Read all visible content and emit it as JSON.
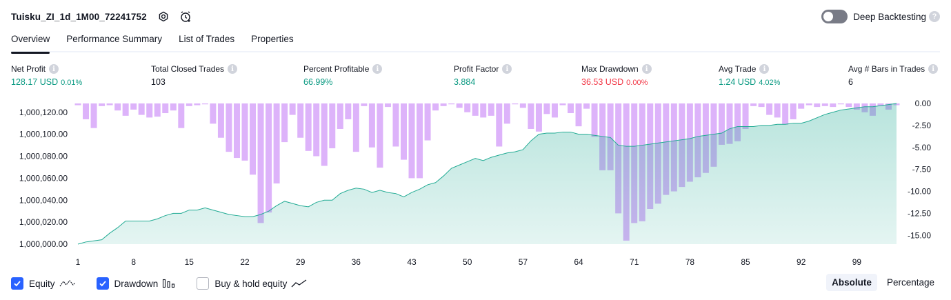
{
  "header": {
    "strategy_name": "Tuisku_ZI_1d_1M00_72241752",
    "icons": [
      "settings-icon",
      "add-alert-icon"
    ],
    "deep_backtesting_label": "Deep Backtesting",
    "deep_backtesting_enabled": false
  },
  "tabs": [
    {
      "label": "Overview",
      "active": true
    },
    {
      "label": "Performance Summary",
      "active": false
    },
    {
      "label": "List of Trades",
      "active": false
    },
    {
      "label": "Properties",
      "active": false
    }
  ],
  "metrics": [
    {
      "label": "Net Profit",
      "value": "128.17 USD",
      "sub": "0.01%",
      "color": "#089981"
    },
    {
      "label": "Total Closed Trades",
      "value": "103",
      "sub": "",
      "color": "#131722"
    },
    {
      "label": "Percent Profitable",
      "value": "66.99%",
      "sub": "",
      "color": "#089981"
    },
    {
      "label": "Profit Factor",
      "value": "3.884",
      "sub": "",
      "color": "#089981"
    },
    {
      "label": "Max Drawdown",
      "value": "36.53 USD",
      "sub": "0.00%",
      "color": "#f23645"
    },
    {
      "label": "Avg Trade",
      "value": "1.24 USD",
      "sub": "4.02%",
      "color": "#089981"
    },
    {
      "label": "Avg # Bars in Trades",
      "value": "6",
      "sub": "",
      "color": "#131722"
    }
  ],
  "legend": {
    "equity": {
      "label": "Equity",
      "checked": true
    },
    "drawdown": {
      "label": "Drawdown",
      "checked": true
    },
    "buy_hold": {
      "label": "Buy & hold equity",
      "checked": false
    }
  },
  "mode": {
    "absolute": "Absolute",
    "percentage": "Percentage",
    "selected": "Absolute"
  },
  "chart_data": {
    "type": "area",
    "x_ticks": [
      "1",
      "8",
      "15",
      "22",
      "29",
      "36",
      "43",
      "50",
      "57",
      "64",
      "71",
      "78",
      "85",
      "92",
      "99"
    ],
    "y_left_ticks": [
      "1,000,000.00",
      "1,000,020.00",
      "1,000,040.00",
      "1,000,060.00",
      "1,000,080.00",
      "1,000,100.00",
      "1,000,120.00"
    ],
    "y_left_range": [
      1000000,
      1000128
    ],
    "y_right_ticks": [
      "0.00",
      "-2.50",
      "-5.00",
      "-7.50",
      "-10.00",
      "-12.50",
      "-15.00"
    ],
    "y_right_range": [
      -16,
      0
    ],
    "series": [
      {
        "name": "Equity",
        "color": "#22ab94",
        "values": [
          1000000,
          1000002,
          1000003,
          1000004,
          1000010,
          1000015,
          1000021,
          1000021,
          1000021,
          1000021,
          1000023,
          1000026,
          1000028,
          1000028,
          1000031,
          1000031,
          1000033,
          1000031,
          1000029,
          1000027,
          1000026,
          1000025,
          1000025,
          1000027,
          1000030,
          1000035,
          1000039,
          1000037,
          1000035,
          1000034,
          1000038,
          1000040,
          1000040,
          1000046,
          1000049,
          1000051,
          1000050,
          1000047,
          1000049,
          1000047,
          1000046,
          1000043,
          1000047,
          1000050,
          1000054,
          1000056,
          1000062,
          1000069,
          1000072,
          1000075,
          1000078,
          1000076,
          1000079,
          1000081,
          1000083,
          1000084,
          1000086,
          1000094,
          1000100,
          1000101,
          1000101,
          1000102,
          1000102,
          1000100,
          1000100,
          1000099,
          1000098,
          1000097,
          1000090,
          1000089,
          1000089,
          1000090,
          1000091,
          1000092,
          1000093,
          1000094,
          1000095,
          1000096,
          1000098,
          1000099,
          1000100,
          1000101,
          1000105,
          1000107,
          1000107,
          1000107,
          1000108,
          1000108,
          1000109,
          1000109,
          1000110,
          1000110,
          1000112,
          1000115,
          1000118,
          1000120,
          1000122,
          1000123,
          1000124,
          1000125,
          1000125,
          1000126,
          1000127,
          1000128
        ]
      },
      {
        "name": "Drawdown",
        "color": "#ce93f8",
        "values": [
          -0.2,
          -1.8,
          -2.8,
          -0.3,
          -0.2,
          -0.8,
          -1.4,
          -0.7,
          -1.3,
          -1.6,
          -1.5,
          -1.1,
          -0.8,
          -2.8,
          -0.3,
          -0.2,
          -0.1,
          -2.3,
          -3.9,
          -5.5,
          -6.2,
          -6.5,
          -8.1,
          -13.6,
          -12.4,
          -9.1,
          -4.4,
          -1.3,
          -3.9,
          -5.4,
          -6.0,
          -7.1,
          -5.1,
          -2.9,
          -1.8,
          -5.5,
          -0.3,
          -5.0,
          -7.3,
          -0.4,
          -4.9,
          -6.4,
          -8.5,
          -8.5,
          -4.2,
          -0.8,
          -0.3,
          -0.1,
          -0.5,
          -1.0,
          -1.4,
          -1.6,
          -1.4,
          -4.9,
          -2.3,
          -0.1,
          -0.5,
          -2.9,
          -3.2,
          -1.2,
          -1.6,
          -0.2,
          -1.1,
          -2.6,
          -0.6,
          -3.8,
          -7.6,
          -7.6,
          -12.5,
          -15.6,
          -13.6,
          -13.4,
          -12.0,
          -11.4,
          -10.4,
          -10.0,
          -9.5,
          -8.9,
          -8.4,
          -7.9,
          -7.2,
          -4.7,
          -4.6,
          -4.3,
          -2.9,
          -0.3,
          -0.4,
          -1.3,
          -1.6,
          -2.4,
          -1.8,
          -0.6,
          -0.2,
          -0.4,
          -0.3,
          -0.4,
          -0.1,
          -0.4,
          -0.7,
          -1.0,
          -1.4,
          -0.3,
          -0.7,
          -0.2
        ]
      }
    ]
  }
}
